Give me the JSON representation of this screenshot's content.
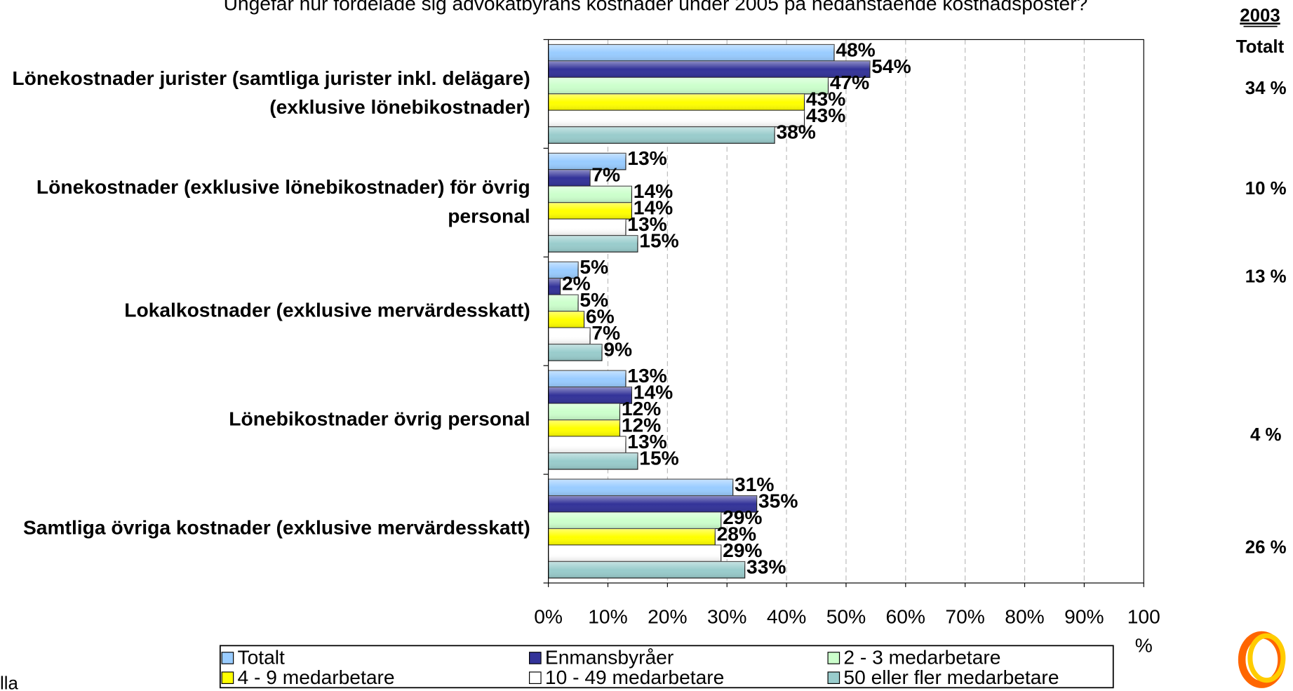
{
  "chart_data": {
    "type": "bar",
    "orientation": "horizontal",
    "title": "Ungefär hur fördelade sig advokatbyråns kostnader under 2005 på nedanstående kostnadsposter?",
    "categories": [
      "Lönekostnader jurister (samtliga jurister inkl. delägare)(exklusive lönebikostnader)",
      "Lönekostnader (exklusive lönebikostnader) för övrig personal",
      "Lokalkostnader (exklusive mervärdesskatt)",
      "Lönebikostnader övrig personal",
      "Samtliga övriga kostnader (exklusive mervärdesskatt)"
    ],
    "series": [
      {
        "name": "Totalt",
        "color": "#99ccff",
        "values": [
          48,
          13,
          5,
          13,
          31
        ],
        "value_labels": [
          "48%",
          "13%",
          "5%",
          "13%",
          "31%"
        ]
      },
      {
        "name": "Enmansbyråer",
        "color": "#333399",
        "values": [
          54,
          7,
          2,
          14,
          35
        ],
        "value_labels": [
          "54%",
          "7%",
          "2%",
          "14%",
          "35%"
        ]
      },
      {
        "name": "2 - 3 medarbetare",
        "color": "#ccffcc",
        "values": [
          47,
          14,
          5,
          12,
          29
        ],
        "value_labels": [
          "47%",
          "14%",
          "5%",
          "12%",
          "29%"
        ]
      },
      {
        "name": "4 - 9 medarbetare",
        "color": "#ffff00",
        "values": [
          43,
          14,
          6,
          12,
          28
        ],
        "value_labels": [
          "43%",
          "14%",
          "6%",
          "12%",
          "28%"
        ]
      },
      {
        "name": "10 - 49 medarbetare",
        "color": "#ffffff",
        "values": [
          43,
          13,
          7,
          13,
          29
        ],
        "value_labels": [
          "43%",
          "13%",
          "7%",
          "13%",
          "29%"
        ]
      },
      {
        "name": "50 eller fler medarbetare",
        "color": "#99cccc",
        "values": [
          38,
          15,
          9,
          15,
          33
        ],
        "value_labels": [
          "38%",
          "15%",
          "9%",
          "15%",
          "33%"
        ]
      }
    ],
    "xlim": [
      0,
      100
    ],
    "xticks": [
      {
        "value": 0,
        "label": "0%"
      },
      {
        "value": 10,
        "label": "10%"
      },
      {
        "value": 20,
        "label": "20%"
      },
      {
        "value": 30,
        "label": "30%"
      },
      {
        "value": 40,
        "label": "40%"
      },
      {
        "value": 50,
        "label": "50%"
      },
      {
        "value": 60,
        "label": "60%"
      },
      {
        "value": 70,
        "label": "70%"
      },
      {
        "value": 80,
        "label": "80%"
      },
      {
        "value": 90,
        "label": "90%"
      },
      {
        "value": 100,
        "label": "100 %"
      }
    ],
    "grid": true,
    "legend": "bottom",
    "comparison_header": [
      "2003",
      "Totalt"
    ],
    "comparison_values": [
      "34 %",
      "10 %",
      "13 %",
      "4 %",
      "26 %"
    ],
    "footnote": "lla"
  }
}
